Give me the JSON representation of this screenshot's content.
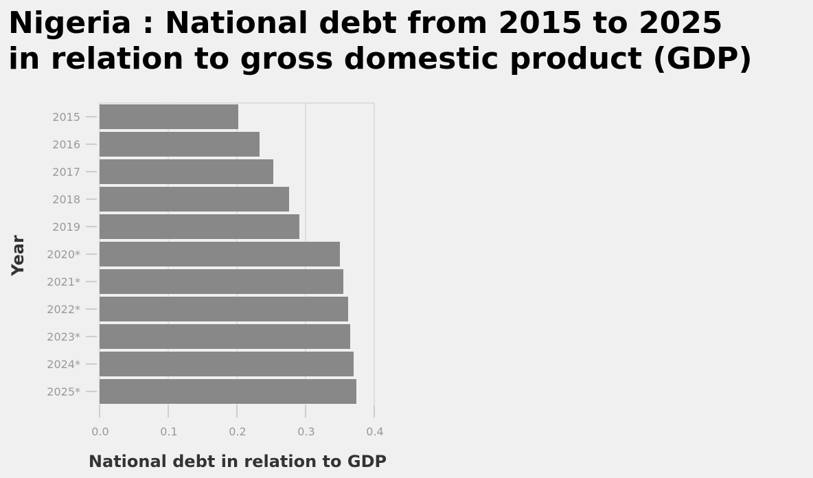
{
  "chart_data": {
    "type": "bar",
    "orientation": "horizontal",
    "title_lines": [
      "Nigeria : National debt from 2015 to 2025",
      "in relation to gross domestic product (GDP)"
    ],
    "title": "Nigeria : National debt from 2015 to 2025 in relation to gross domestic product (GDP)",
    "xlabel": "National debt in relation to GDP",
    "ylabel": "Year",
    "categories": [
      "2015",
      "2016",
      "2017",
      "2018",
      "2019",
      "2020*",
      "2021*",
      "2022*",
      "2023*",
      "2024*",
      "2025*"
    ],
    "values": [
      0.202,
      0.233,
      0.253,
      0.276,
      0.291,
      0.35,
      0.355,
      0.362,
      0.365,
      0.37,
      0.374
    ],
    "xlim": [
      0,
      0.4
    ],
    "xticks": [
      "0.0",
      "0.1",
      "0.2",
      "0.3",
      "0.4"
    ],
    "grid": true,
    "legend": "none",
    "colors": {
      "bar": "#888888",
      "background": "#f0f0f0",
      "grid": "#cccccc"
    }
  }
}
